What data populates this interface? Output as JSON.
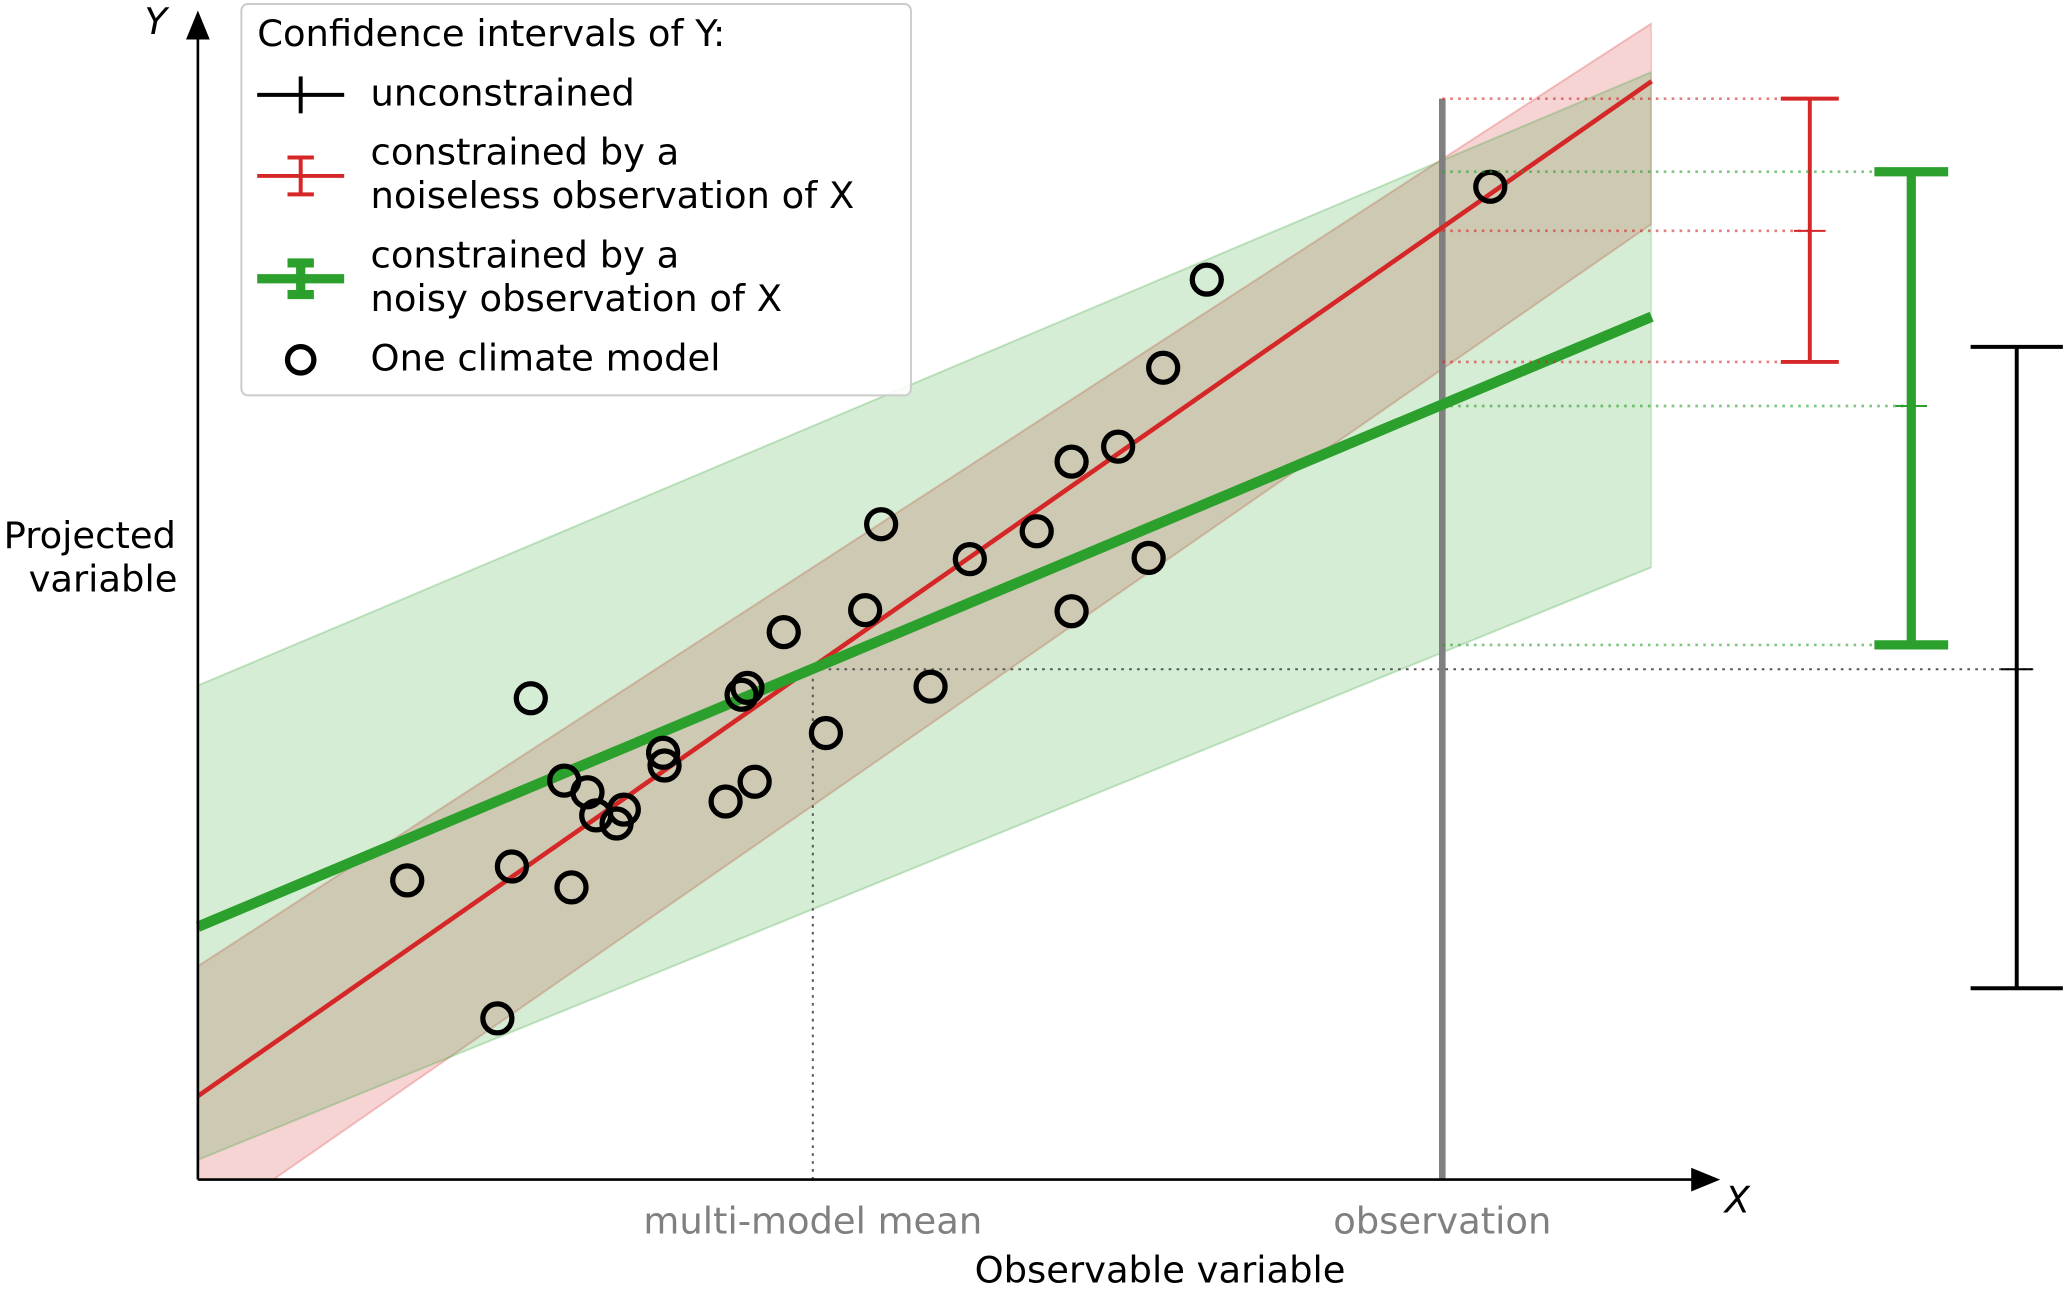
{
  "chart_data": {
    "type": "scatter",
    "y_axis_symbol": "Y",
    "x_axis_symbol": "X",
    "ylabel": [
      "Projected",
      "variable"
    ],
    "xlabel": "Observable variable",
    "xlim": [
      0,
      100
    ],
    "ylim": [
      0,
      100
    ],
    "xticks": [
      {
        "value": 42.3,
        "label": "multi-model mean"
      },
      {
        "value": 85.6,
        "label": "observation"
      }
    ],
    "legend": {
      "title": "Confidence intervals of Y:",
      "corner": "upper left"
    },
    "intervals": [
      {
        "name": [
          "unconstrained"
        ],
        "color": "#000000",
        "center": 44.0,
        "lower": 16.5,
        "upper": 71.8
      },
      {
        "name": [
          "constrained by a",
          "noiseless observation of X"
        ],
        "color": "#d62728",
        "center": 81.8,
        "lower": 70.5,
        "upper": 93.2,
        "fit": {
          "x": [
            0,
            100
          ],
          "y": [
            7.2,
            94.7
          ]
        },
        "band": {
          "x": [
            0,
            100
          ],
          "lower": [
            -4.5,
            82.4
          ],
          "upper": [
            18.4,
            99.7
          ]
        }
      },
      {
        "name": [
          "constrained by a",
          "noisy observation of X"
        ],
        "color": "#2ca02c",
        "center": 66.7,
        "lower": 46.1,
        "upper": 86.9,
        "fit": {
          "x": [
            0,
            100
          ],
          "y": [
            21.8,
            74.4
          ]
        },
        "band": {
          "x": [
            0,
            100
          ],
          "lower": [
            1.7,
            52.8
          ],
          "upper": [
            42.6,
            95.5
          ]
        }
      }
    ],
    "series": [
      {
        "name": "One climate model",
        "color": "#000000",
        "x": [
          14.4,
          21.6,
          25.7,
          20.6,
          22.9,
          25.2,
          26.8,
          27.4,
          28.8,
          29.3,
          32.0,
          32.1,
          36.3,
          38.3,
          37.4,
          37.8,
          40.3,
          43.2,
          45.9,
          47.0,
          50.4,
          53.1,
          57.7,
          60.1,
          60.1,
          63.3,
          65.4,
          66.4,
          69.4,
          88.9
        ],
        "y": [
          25.8,
          27.0,
          25.2,
          13.9,
          41.5,
          34.4,
          33.4,
          31.4,
          30.7,
          31.9,
          36.8,
          35.7,
          32.6,
          34.3,
          41.8,
          42.4,
          47.2,
          38.5,
          49.1,
          56.5,
          42.5,
          53.5,
          55.9,
          61.9,
          49.0,
          63.2,
          53.6,
          70.0,
          77.6,
          85.6
        ]
      }
    ]
  }
}
